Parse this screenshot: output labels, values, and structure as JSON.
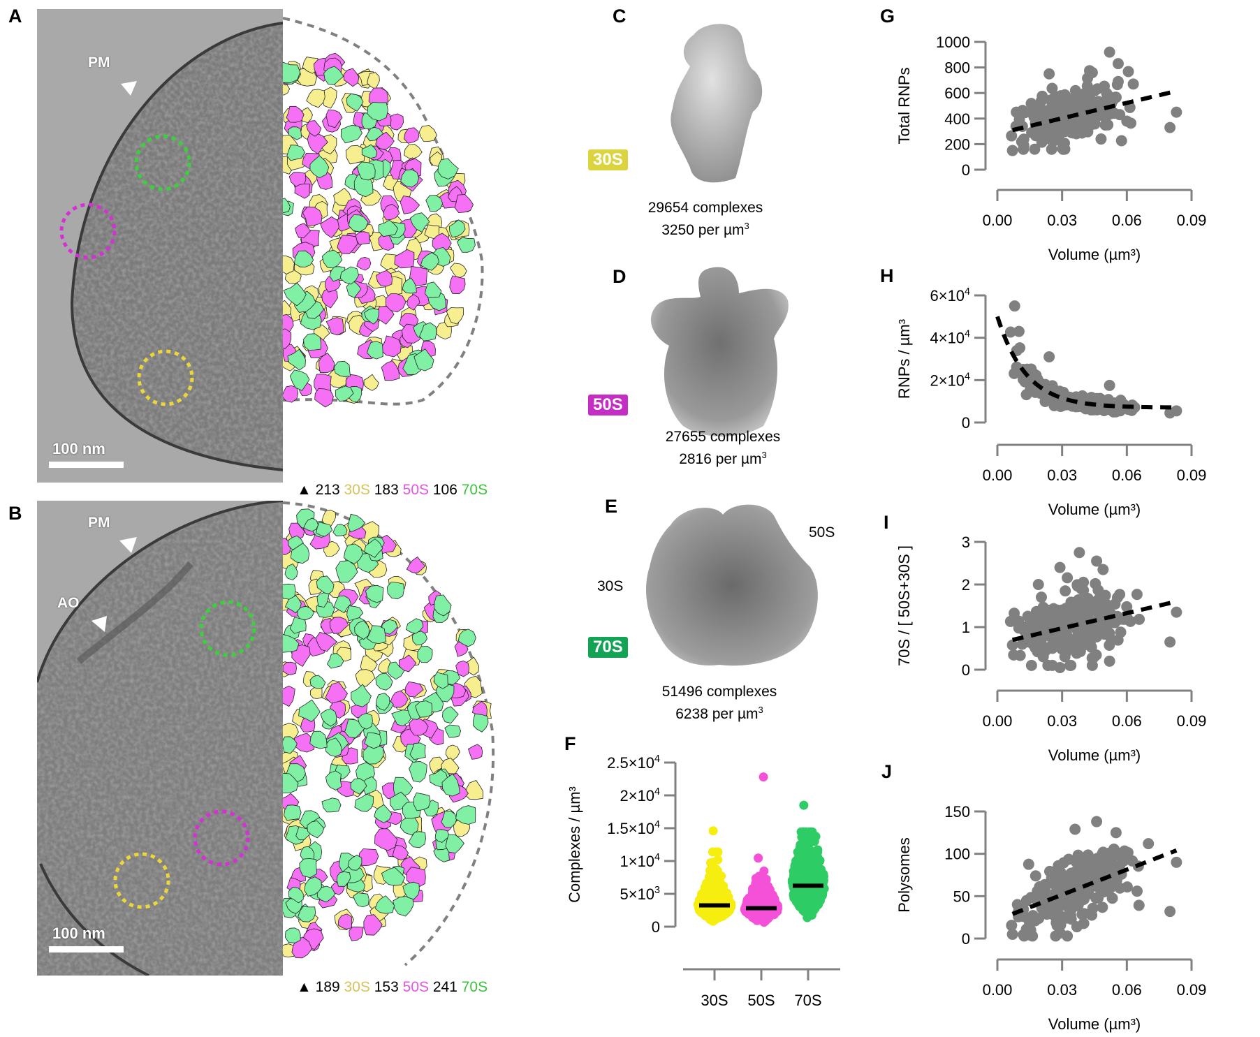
{
  "figure": {
    "panels": {
      "A": {
        "letter": "A",
        "annotations": {
          "membrane": "PM"
        },
        "scale_bar": "100 nm",
        "counts": [
          {
            "value": "213",
            "species": "30S"
          },
          {
            "value": "183",
            "species": "50S"
          },
          {
            "value": "106",
            "species": "70S"
          }
        ],
        "count_marker": "▲"
      },
      "B": {
        "letter": "B",
        "annotations": {
          "membrane": "PM",
          "organelle": "AO"
        },
        "scale_bar": "100 nm",
        "counts": [
          {
            "value": "189",
            "species": "30S"
          },
          {
            "value": "153",
            "species": "50S"
          },
          {
            "value": "241",
            "species": "70S"
          }
        ],
        "count_marker": "▲"
      },
      "C": {
        "letter": "C",
        "badge": "30S",
        "complexes": "29654 complexes",
        "density": "3250 per µm",
        "density_sup": "3"
      },
      "D": {
        "letter": "D",
        "badge": "50S",
        "complexes": "27655 complexes",
        "density": "2816 per µm",
        "density_sup": "3"
      },
      "E": {
        "letter": "E",
        "badge": "70S",
        "complexes": "51496 complexes",
        "density": "6238 per µm",
        "density_sup": "3",
        "label_30s": "30S",
        "label_50s": "50S"
      },
      "F": {
        "letter": "F"
      },
      "G": {
        "letter": "G"
      },
      "H": {
        "letter": "H"
      },
      "I": {
        "letter": "I"
      },
      "J": {
        "letter": "J"
      }
    },
    "colors": {
      "s30": "#e6e14a",
      "s50": "#c832c8",
      "s70": "#13a355",
      "s30_text": "#d8c25a",
      "s50_text": "#e455e4",
      "s70_text": "#3cc23c",
      "s30_particle": "#f7ef8f",
      "s50_particle": "#f570f5",
      "s70_particle": "#7ff0a4",
      "scatter": "#808080",
      "axis": "#808080"
    }
  },
  "chart_data": [
    {
      "id": "F",
      "type": "scatter",
      "title": "",
      "xlabel": "",
      "ylabel": "Complexes / µm³",
      "categories": [
        "30S",
        "50S",
        "70S"
      ],
      "yticks": [
        0,
        5000,
        10000,
        15000,
        20000,
        25000
      ],
      "ytick_labels": [
        {
          "m": "0",
          "e": ""
        },
        {
          "m": "5×10",
          "e": "3"
        },
        {
          "m": "1×10",
          "e": "4"
        },
        {
          "m": "1.5×10",
          "e": "4"
        },
        {
          "m": "2×10",
          "e": "4"
        },
        {
          "m": "2.5×10",
          "e": "4"
        }
      ],
      "ylim": [
        0,
        25000
      ],
      "series": [
        {
          "name": "30S",
          "color": "#f5ee0f",
          "median": 3250,
          "min": 700,
          "max": 14600
        },
        {
          "name": "50S",
          "color": "#f550d8",
          "median": 2816,
          "min": 500,
          "max": 22800
        },
        {
          "name": "70S",
          "color": "#2ecc64",
          "median": 6238,
          "min": 1000,
          "max": 18500
        }
      ]
    },
    {
      "id": "G",
      "type": "scatter",
      "xlabel": "Volume (µm³)",
      "ylabel": "Total RNPs",
      "xlim": [
        0,
        0.09
      ],
      "ylim": [
        0,
        1000
      ],
      "xticks": [
        "0.00",
        "0.03",
        "0.06",
        "0.09"
      ],
      "yticks": [
        "0",
        "200",
        "400",
        "600",
        "800",
        "1000"
      ],
      "fit": {
        "x": [
          0.007,
          0.083
        ],
        "y": [
          310,
          615
        ],
        "style": "dashed",
        "model": "linear"
      },
      "outliers": [
        [
          0.052,
          920
        ],
        [
          0.056,
          830
        ],
        [
          0.024,
          750
        ],
        [
          0.044,
          760
        ],
        [
          0.056,
          690
        ],
        [
          0.063,
          670
        ],
        [
          0.08,
          330
        ],
        [
          0.083,
          450
        ],
        [
          0.06,
          380
        ],
        [
          0.007,
          150
        ]
      ]
    },
    {
      "id": "H",
      "type": "scatter",
      "xlabel": "Volume (µm³)",
      "ylabel": "RNPs / µm³",
      "xlim": [
        0,
        0.09
      ],
      "ylim": [
        0,
        60000
      ],
      "xticks": [
        "0.00",
        "0.03",
        "0.06",
        "0.09"
      ],
      "ytick_labels": [
        {
          "m": "0",
          "e": ""
        },
        {
          "m": "2×10",
          "e": "4"
        },
        {
          "m": "4×10",
          "e": "4"
        },
        {
          "m": "6×10",
          "e": "4"
        }
      ],
      "yticks": [
        0,
        20000,
        40000,
        60000
      ],
      "fit": {
        "model": "exp-decay",
        "y0": 50000,
        "plateau": 7000,
        "k": 75,
        "x": [
          0.0,
          0.083
        ],
        "style": "dashed"
      },
      "outliers": [
        [
          0.008,
          55000
        ],
        [
          0.01,
          43000
        ],
        [
          0.024,
          31000
        ],
        [
          0.08,
          4500
        ],
        [
          0.083,
          5500
        ],
        [
          0.052,
          17500
        ]
      ]
    },
    {
      "id": "I",
      "type": "scatter",
      "xlabel": "Volume (µm³)",
      "ylabel": "70S / [ 50S+30S ]",
      "xlim": [
        0,
        0.09
      ],
      "ylim": [
        0,
        3
      ],
      "xticks": [
        "0.00",
        "0.03",
        "0.06",
        "0.09"
      ],
      "yticks": [
        "0",
        "1",
        "2",
        "3"
      ],
      "fit": {
        "x": [
          0.007,
          0.083
        ],
        "y": [
          0.7,
          1.6
        ],
        "style": "dashed",
        "model": "linear"
      },
      "outliers": [
        [
          0.038,
          2.75
        ],
        [
          0.046,
          2.55
        ],
        [
          0.029,
          2.4
        ],
        [
          0.049,
          2.35
        ],
        [
          0.019,
          2.0
        ],
        [
          0.08,
          0.65
        ],
        [
          0.083,
          1.35
        ],
        [
          0.044,
          0.1
        ],
        [
          0.052,
          0.2
        ],
        [
          0.029,
          0.05
        ]
      ]
    },
    {
      "id": "J",
      "type": "scatter",
      "xlabel": "Volume (µm³)",
      "ylabel": "Polysomes",
      "xlim": [
        0,
        0.09
      ],
      "ylim": [
        0,
        150
      ],
      "xticks": [
        "0.00",
        "0.03",
        "0.06",
        "0.09"
      ],
      "yticks": [
        "0",
        "50",
        "100",
        "150"
      ],
      "fit": {
        "x": [
          0.007,
          0.083
        ],
        "y": [
          29,
          104
        ],
        "style": "dashed",
        "model": "linear"
      },
      "outliers": [
        [
          0.046,
          138
        ],
        [
          0.036,
          129
        ],
        [
          0.055,
          125
        ],
        [
          0.07,
          112
        ],
        [
          0.08,
          32
        ],
        [
          0.083,
          90
        ],
        [
          0.007,
          5
        ],
        [
          0.027,
          3
        ]
      ]
    }
  ]
}
